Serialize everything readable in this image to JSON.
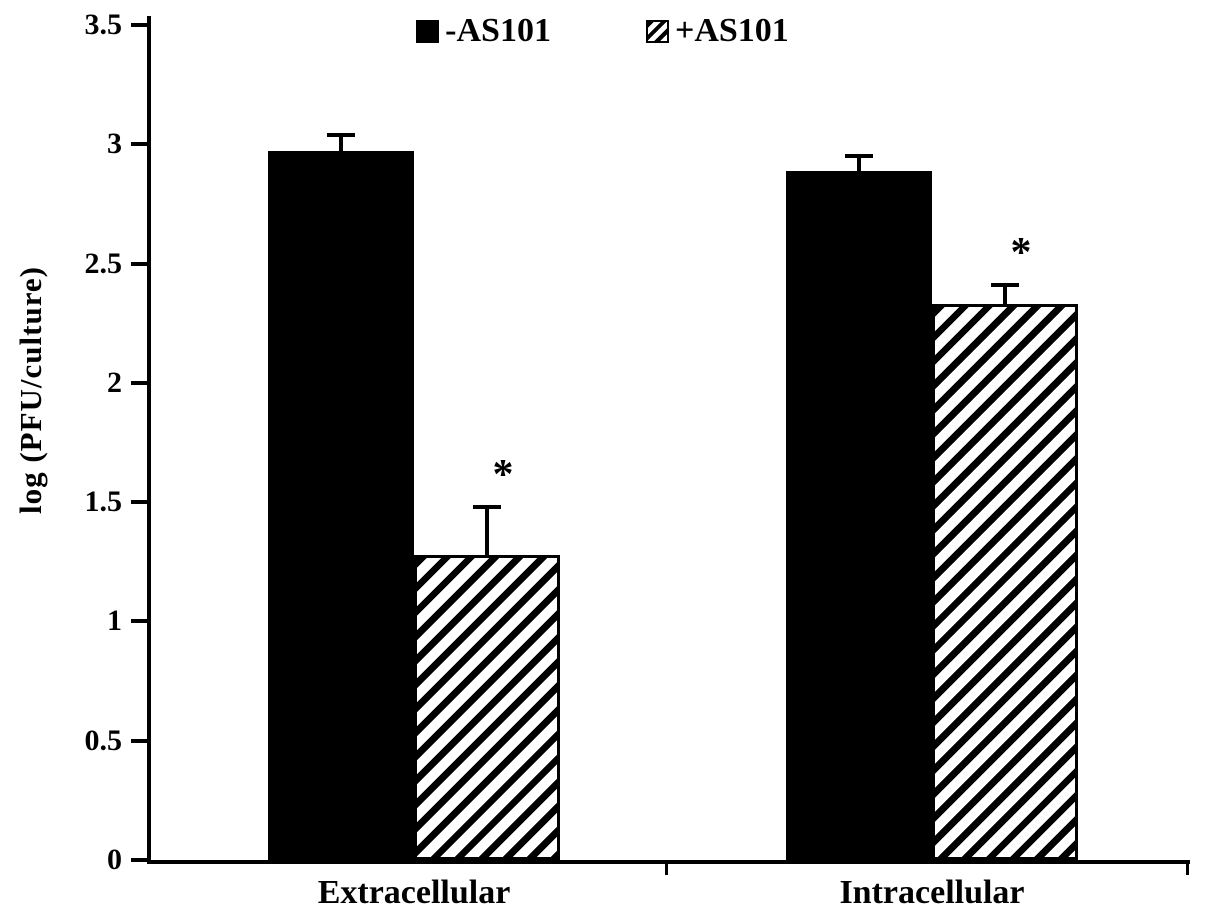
{
  "chart_data": {
    "type": "bar",
    "title": "",
    "xlabel": "",
    "ylabel": "log (PFU/culture)",
    "categories": [
      "Extracellular",
      "Intracellular"
    ],
    "series": [
      {
        "name": "-AS101",
        "pattern": "solid",
        "color": "#000000",
        "values": [
          2.97,
          2.89
        ],
        "errors": [
          0.07,
          0.06
        ],
        "significance": [
          "",
          ""
        ]
      },
      {
        "name": "+AS101",
        "pattern": "hatched",
        "color": "#000000",
        "values": [
          1.28,
          2.33
        ],
        "errors": [
          0.2,
          0.08
        ],
        "significance": [
          "*",
          "*"
        ]
      }
    ],
    "ylim": [
      0,
      3.5
    ],
    "yticks": [
      "0",
      "0.5",
      "1",
      "1.5",
      "2",
      "2.5",
      "3",
      "3.5"
    ],
    "grid": false,
    "error_bars": true,
    "legend_position": "top-center"
  },
  "legend": {
    "items": [
      {
        "label": "-AS101",
        "swatch": "solid-black-square"
      },
      {
        "label": "+AS101",
        "swatch": "hatched-square"
      }
    ]
  },
  "colors": {
    "foreground": "#000000",
    "background": "#ffffff"
  }
}
